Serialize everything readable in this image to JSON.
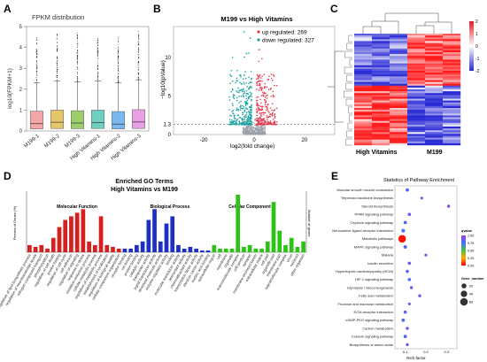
{
  "panels": {
    "a": {
      "letter": "A",
      "title": "FPKM distribution",
      "ylabel": "log10(FPKM+1)"
    },
    "b": {
      "letter": "B",
      "title": "M199 vs High Vitamins",
      "ylabel": "−log10(pValue)",
      "xlabel": "log2(fold change)",
      "threshold_label": "1.3"
    },
    "c": {
      "letter": "C",
      "group_left": "High Vitamins",
      "group_right": "M199"
    },
    "d": {
      "letter": "D",
      "title_line1": "Enriched GO Terms",
      "title_line2": "High Vitamins vs M199",
      "sec1": "Molecular Function",
      "sec2": "Biological Process",
      "sec3": "Cellular Component",
      "ylabel_left": "Percent of Genes (%)",
      "ylabel_right": "Number of genes"
    },
    "e": {
      "letter": "E",
      "title": "Statistics of Pathway Enrichment",
      "xlabel": "Rich factor",
      "legend_pvalue_title": "qvalue",
      "legend_size_title": "Gene_number"
    }
  },
  "chart_data": [
    {
      "type": "box",
      "title": "FPKM distribution",
      "ylabel": "log10(FPKM+1)",
      "ylim": [
        0,
        5
      ],
      "yticks": [
        0,
        1,
        2,
        3,
        4,
        5
      ],
      "categories": [
        "M199-1",
        "M199-2",
        "M199-3",
        "High Vitamins-1",
        "High Vitamins-2",
        "High Vitamins-3"
      ],
      "colors": [
        "#f4a6a6",
        "#e5c66b",
        "#9cce6b",
        "#6fd0c1",
        "#7ab8f0",
        "#e7a0e4"
      ],
      "median": [
        0.35,
        0.42,
        0.38,
        0.4,
        0.33,
        0.43
      ],
      "q1": [
        0.1,
        0.12,
        0.11,
        0.12,
        0.1,
        0.12
      ],
      "q3": [
        0.95,
        1.0,
        0.97,
        1.0,
        0.93,
        1.02
      ],
      "whisker_high": [
        2.3,
        2.4,
        2.35,
        2.4,
        2.3,
        2.45
      ],
      "outlier_max": [
        4.7,
        4.9,
        4.85,
        4.8,
        4.7,
        4.9
      ]
    },
    {
      "type": "scatter",
      "title": "M199 vs High Vitamins",
      "xlabel": "log2(fold change)",
      "ylabel": "−log10(pValue)",
      "xticks": [
        -20,
        0,
        20
      ],
      "yticks": [
        0,
        1.3,
        5,
        10
      ],
      "xlim": [
        -32,
        32
      ],
      "ylim": [
        0,
        14
      ],
      "threshold": 1.3,
      "series": [
        {
          "name": "up regulated: 269",
          "color": "#e8374a"
        },
        {
          "name": "down regulated: 327",
          "color": "#1aa3a3"
        }
      ]
    },
    {
      "type": "heatmap",
      "columns_groups": [
        "High Vitamins",
        "M199"
      ],
      "scale_ticks": [
        2,
        1,
        0,
        -1,
        -2
      ],
      "colors": {
        "high": "#e41a1c",
        "mid": "#ffffff",
        "low": "#2b2bd6"
      }
    },
    {
      "type": "bar",
      "title": "Enriched GO Terms",
      "subtitle": "High Vitamins vs M199",
      "ylabel_left": "Percent of Genes (%)",
      "ylabel_right": "Number of genes",
      "series": [
        {
          "name": "Molecular Function",
          "color": "#d61f1f",
          "categories": [
            "regulation of lipid biosynthetic process",
            "regulation of neurotransmitter levels",
            "nitrogen compound transport",
            "phosphorylation",
            "regulation of cell death",
            "protein folding",
            "regulation of cell cycle",
            "cell adhesion",
            "regulation of signaling",
            "response to stress",
            "oxidation-reduction process",
            "cellular metabolic process",
            "regulation of metabolic process",
            "establishment of localization",
            "regulation of biological quality",
            "cellular component organization"
          ],
          "values": [
            2,
            1.5,
            2,
            1,
            4,
            7,
            9,
            10,
            11,
            12,
            3,
            2,
            10,
            2,
            1.5,
            1
          ]
        },
        {
          "name": "Biological Process",
          "color": "#1e2fc4",
          "categories": [
            "receptor binding",
            "ion binding",
            "protein binding",
            "catalytic activity",
            "transporter activity",
            "signal transducer activity",
            "structural molecule activity",
            "enzyme regulator activity",
            "binding",
            "molecular transducer activity",
            "antioxidant activity",
            "chemoattractant activity",
            "transcription factor activity",
            "electron carrier activity",
            "nucleic acid binding"
          ],
          "values": [
            1,
            1,
            2,
            3,
            9,
            12,
            3,
            8,
            10,
            2,
            1,
            1.5,
            1,
            0.5,
            0.5
          ]
        },
        {
          "name": "Cellular Component",
          "color": "#2cc414",
          "categories": [
            "extracellular region",
            "cell",
            "membrane",
            "organelle",
            "macromolecular complex",
            "cell junction",
            "synapse",
            "membrane-enclosed lumen",
            "extracellular matrix",
            "cell part",
            "organelle part",
            "membrane part",
            "supramolecular complex",
            "virion",
            "nucleoid",
            "other organism"
          ],
          "values": [
            2,
            1,
            1,
            1,
            16,
            1.5,
            2,
            1,
            1,
            3,
            14,
            6,
            2,
            4,
            1.5,
            3
          ]
        }
      ]
    },
    {
      "type": "scatter",
      "title": "Statistics of Pathway Enrichment",
      "xlabel": "Rich factor",
      "xticks": [
        0.1,
        0.2,
        0.3
      ],
      "xlim": [
        0.05,
        0.35
      ],
      "categories": [
        "Vascular smooth muscle contraction",
        "Terpenoid backbone biosynthesis",
        "Steroid biosynthesis",
        "PPAR signaling pathway",
        "Oxytocin signaling pathway",
        "Neuroactive ligand-receptor interaction",
        "Metabolic pathways",
        "MAPK signaling pathway",
        "Malaria",
        "Insulin secretion",
        "Hypertrophic cardiomyopathy (HCM)",
        "HIF-1 signaling pathway",
        "Glycolysis / Gluconeogenesis",
        "Fatty acid metabolism",
        "Fructose and mannose metabolism",
        "ECM-receptor interaction",
        "cGMP-PKG signaling pathway",
        "Carbon metabolism",
        "Calcium signaling pathway",
        "Biosynthesis of amino acids"
      ],
      "rich_factor": [
        0.11,
        0.18,
        0.31,
        0.12,
        0.1,
        0.09,
        0.085,
        0.1,
        0.2,
        0.12,
        0.11,
        0.12,
        0.13,
        0.17,
        0.12,
        0.1,
        0.09,
        0.11,
        0.1,
        0.11
      ],
      "qvalue": [
        0.8,
        0.9,
        0.95,
        0.85,
        0.8,
        0.75,
        0.02,
        0.8,
        0.9,
        0.85,
        0.8,
        0.8,
        0.85,
        0.9,
        0.9,
        0.8,
        0.8,
        0.85,
        0.8,
        0.85
      ],
      "gene_number": [
        6,
        3,
        4,
        5,
        6,
        8,
        60,
        7,
        3,
        5,
        5,
        5,
        4,
        4,
        3,
        5,
        6,
        4,
        6,
        4
      ],
      "legend_qvalue_ticks": [
        "1.00",
        "0.75",
        "0.50",
        "0.25",
        "0.00"
      ],
      "legend_size_ticks": [
        "20",
        "40",
        "60"
      ]
    }
  ]
}
